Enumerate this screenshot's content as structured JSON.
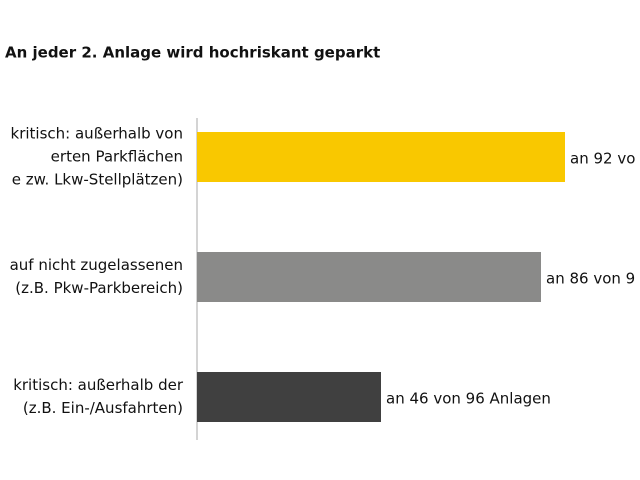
{
  "chart_data": {
    "type": "hbar",
    "title": "An jeder 2. Anlage wird hochriskant geparkt",
    "categories": [
      [
        "kritisch: außerhalb von",
        "erten Parkflächen",
        "e zw. Lkw-Stellplätzen)"
      ],
      [
        "auf nicht zugelassenen",
        "(z.B. Pkw-Parkbereich)"
      ],
      [
        "kritisch: außerhalb der",
        "(z.B. Ein-/Ausfahrten)"
      ]
    ],
    "values": [
      92,
      86,
      46
    ],
    "value_labels": [
      "an 92 vo",
      "an 86 von 9",
      "an 46 von 96 Anlagen"
    ],
    "colors": [
      "#f9c800",
      "#8a8a89",
      "#404040"
    ]
  }
}
